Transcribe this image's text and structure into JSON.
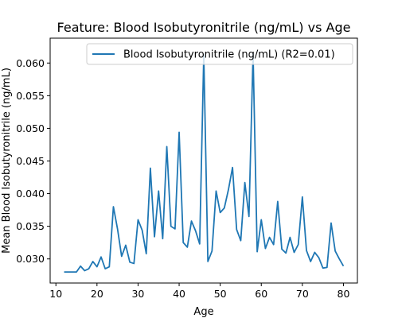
{
  "chart_data": {
    "type": "line",
    "title": "Feature: Blood Isobutyronitrile (ng/mL) vs Age",
    "xlabel": "Age",
    "ylabel": "Mean Blood Isobutyronitrile (ng/mL)",
    "xlim": [
      8.6,
      83.4
    ],
    "ylim": [
      0.02631,
      0.06381
    ],
    "x_ticks": [
      10,
      20,
      30,
      40,
      50,
      60,
      70,
      80
    ],
    "y_ticks": [
      0.03,
      0.035,
      0.04,
      0.045,
      0.05,
      0.055,
      0.06
    ],
    "grid": false,
    "legend_position": "top-right",
    "series": [
      {
        "name": "Blood Isobutyronitrile (ng/mL) (R2=0.01)",
        "color": "#1f77b4",
        "x": [
          12,
          13,
          14,
          15,
          16,
          17,
          18,
          19,
          20,
          21,
          22,
          23,
          24,
          25,
          26,
          27,
          28,
          29,
          30,
          31,
          32,
          33,
          34,
          35,
          36,
          37,
          38,
          39,
          40,
          41,
          42,
          43,
          44,
          45,
          46,
          47,
          48,
          49,
          50,
          51,
          52,
          53,
          54,
          55,
          56,
          57,
          58,
          59,
          60,
          61,
          62,
          63,
          64,
          65,
          66,
          67,
          68,
          69,
          70,
          71,
          72,
          73,
          74,
          75,
          76,
          77,
          78,
          79,
          80
        ],
        "y": [
          0.028,
          0.028,
          0.028,
          0.028,
          0.0289,
          0.0282,
          0.0285,
          0.0296,
          0.0288,
          0.0303,
          0.0285,
          0.0288,
          0.038,
          0.0346,
          0.0304,
          0.0321,
          0.0295,
          0.0293,
          0.036,
          0.0344,
          0.0308,
          0.0439,
          0.0334,
          0.0404,
          0.0331,
          0.0472,
          0.035,
          0.0346,
          0.0494,
          0.0325,
          0.0318,
          0.0358,
          0.0343,
          0.0323,
          0.0613,
          0.0296,
          0.0312,
          0.0404,
          0.0371,
          0.0378,
          0.0406,
          0.044,
          0.0345,
          0.0328,
          0.0417,
          0.0365,
          0.0615,
          0.0311,
          0.036,
          0.0316,
          0.0333,
          0.0322,
          0.0388,
          0.0315,
          0.0309,
          0.0333,
          0.031,
          0.0322,
          0.0395,
          0.0313,
          0.0296,
          0.031,
          0.0302,
          0.0286,
          0.0287,
          0.0355,
          0.0312,
          0.03,
          0.0289
        ]
      }
    ]
  }
}
